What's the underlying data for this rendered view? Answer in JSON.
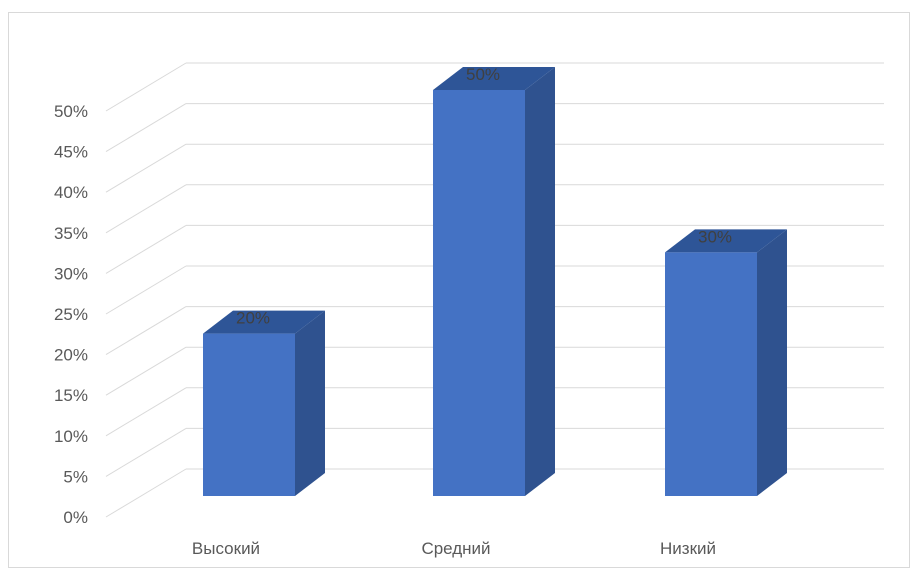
{
  "chart_data": {
    "type": "bar",
    "categories": [
      "Высокий",
      "Средний",
      "Низкий"
    ],
    "values": [
      0.2,
      0.5,
      0.3
    ],
    "data_labels": [
      "20%",
      "50%",
      "30%"
    ],
    "ylim": [
      0,
      0.5
    ],
    "yticks": [
      0,
      0.05,
      0.1,
      0.15,
      0.2,
      0.25,
      0.3,
      0.35,
      0.4,
      0.45,
      0.5
    ],
    "ytick_labels": [
      "0%",
      "5%",
      "10%",
      "15%",
      "20%",
      "25%",
      "30%",
      "35%",
      "40%",
      "45%",
      "50%"
    ],
    "title": "",
    "xlabel": "",
    "ylabel": "",
    "grid": true,
    "style": "3d-column",
    "colors": {
      "bar_front": "#4472C4",
      "bar_side": "#2F528F",
      "bar_top": "#2E5597",
      "grid": "#d9d9d9"
    }
  }
}
